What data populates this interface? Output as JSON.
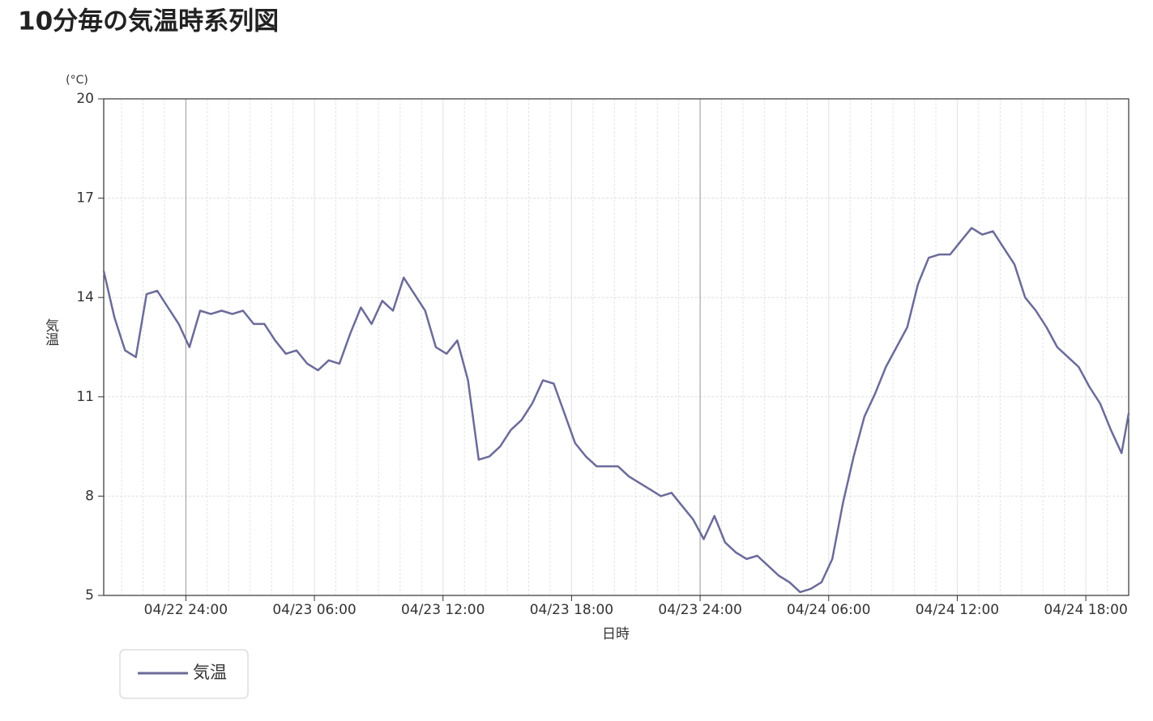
{
  "chart_data": {
    "type": "line",
    "title": "10分毎の気温時系列図",
    "y_unit": "(°C)",
    "ylabel": "気温",
    "xlabel": "日時",
    "x": [
      "04/22 20:10",
      "04/22 20:40",
      "04/22 21:10",
      "04/22 21:40",
      "04/22 22:10",
      "04/22 22:40",
      "04/22 23:10",
      "04/22 23:40",
      "04/23 00:10",
      "04/23 00:40",
      "04/23 01:10",
      "04/23 01:40",
      "04/23 02:10",
      "04/23 02:40",
      "04/23 03:10",
      "04/23 03:40",
      "04/23 04:10",
      "04/23 04:40",
      "04/23 05:10",
      "04/23 05:40",
      "04/23 06:10",
      "04/23 06:40",
      "04/23 07:10",
      "04/23 07:40",
      "04/23 08:10",
      "04/23 08:40",
      "04/23 09:10",
      "04/23 09:40",
      "04/23 10:10",
      "04/23 10:40",
      "04/23 11:10",
      "04/23 11:40",
      "04/23 12:10",
      "04/23 12:40",
      "04/23 13:10",
      "04/23 13:40",
      "04/23 14:10",
      "04/23 14:40",
      "04/23 15:10",
      "04/23 15:40",
      "04/23 16:10",
      "04/23 16:40",
      "04/23 17:10",
      "04/23 17:40",
      "04/23 18:10",
      "04/23 18:40",
      "04/23 19:10",
      "04/23 19:40",
      "04/23 20:10",
      "04/23 20:40",
      "04/23 21:10",
      "04/23 21:40",
      "04/23 22:10",
      "04/23 22:40",
      "04/23 23:10",
      "04/23 23:40",
      "04/24 00:10",
      "04/24 00:40",
      "04/24 01:10",
      "04/24 01:40",
      "04/24 02:10",
      "04/24 02:40",
      "04/24 03:10",
      "04/24 03:40",
      "04/24 04:10",
      "04/24 04:40",
      "04/24 05:10",
      "04/24 05:40",
      "04/24 06:10",
      "04/24 06:40",
      "04/24 07:10",
      "04/24 07:40",
      "04/24 08:10",
      "04/24 08:40",
      "04/24 09:10",
      "04/24 09:40",
      "04/24 10:10",
      "04/24 10:40",
      "04/24 11:10",
      "04/24 11:40",
      "04/24 12:10",
      "04/24 12:40",
      "04/24 13:10",
      "04/24 13:40",
      "04/24 14:10",
      "04/24 14:40",
      "04/24 15:10",
      "04/24 15:40",
      "04/24 16:10",
      "04/24 16:40",
      "04/24 17:10",
      "04/24 17:40",
      "04/24 18:10",
      "04/24 18:40",
      "04/24 19:10",
      "04/24 19:40",
      "04/24 20:00"
    ],
    "series": [
      {
        "name": "気温",
        "color": "#6b6b9a",
        "values": [
          14.8,
          13.4,
          12.4,
          12.2,
          14.1,
          14.2,
          13.7,
          13.2,
          12.5,
          13.6,
          13.5,
          13.6,
          13.5,
          13.6,
          13.2,
          13.2,
          12.7,
          12.3,
          12.4,
          12.0,
          11.8,
          12.1,
          12.0,
          12.9,
          13.7,
          13.2,
          13.9,
          13.6,
          14.6,
          14.1,
          13.6,
          12.5,
          12.3,
          12.7,
          11.5,
          9.1,
          9.2,
          9.5,
          10.0,
          10.3,
          10.8,
          11.5,
          11.4,
          10.5,
          9.6,
          9.2,
          8.9,
          8.9,
          8.9,
          8.6,
          8.4,
          8.2,
          8.0,
          8.1,
          7.7,
          7.3,
          6.7,
          7.4,
          6.6,
          6.3,
          6.1,
          6.2,
          5.9,
          5.6,
          5.4,
          5.1,
          5.2,
          5.4,
          6.1,
          7.8,
          9.2,
          10.4,
          11.1,
          11.9,
          12.5,
          13.1,
          14.4,
          15.2,
          15.3,
          15.3,
          15.7,
          16.1,
          15.9,
          16.0,
          15.5,
          15.0,
          14.0,
          13.6,
          13.1,
          12.5,
          12.2,
          11.9,
          11.3,
          10.8,
          10.0,
          9.3,
          10.5
        ]
      }
    ],
    "xlim": [
      "04/22 20:10",
      "04/24 20:00"
    ],
    "xticks": [
      "04/22 24:00",
      "04/23 06:00",
      "04/23 12:00",
      "04/23 18:00",
      "04/23 24:00",
      "04/24 06:00",
      "04/24 12:00",
      "04/24 18:00"
    ],
    "ylim": [
      5,
      20
    ],
    "yticks": [
      5,
      8,
      11,
      14,
      17,
      20
    ],
    "grid": true,
    "legend": "bottom-left"
  }
}
